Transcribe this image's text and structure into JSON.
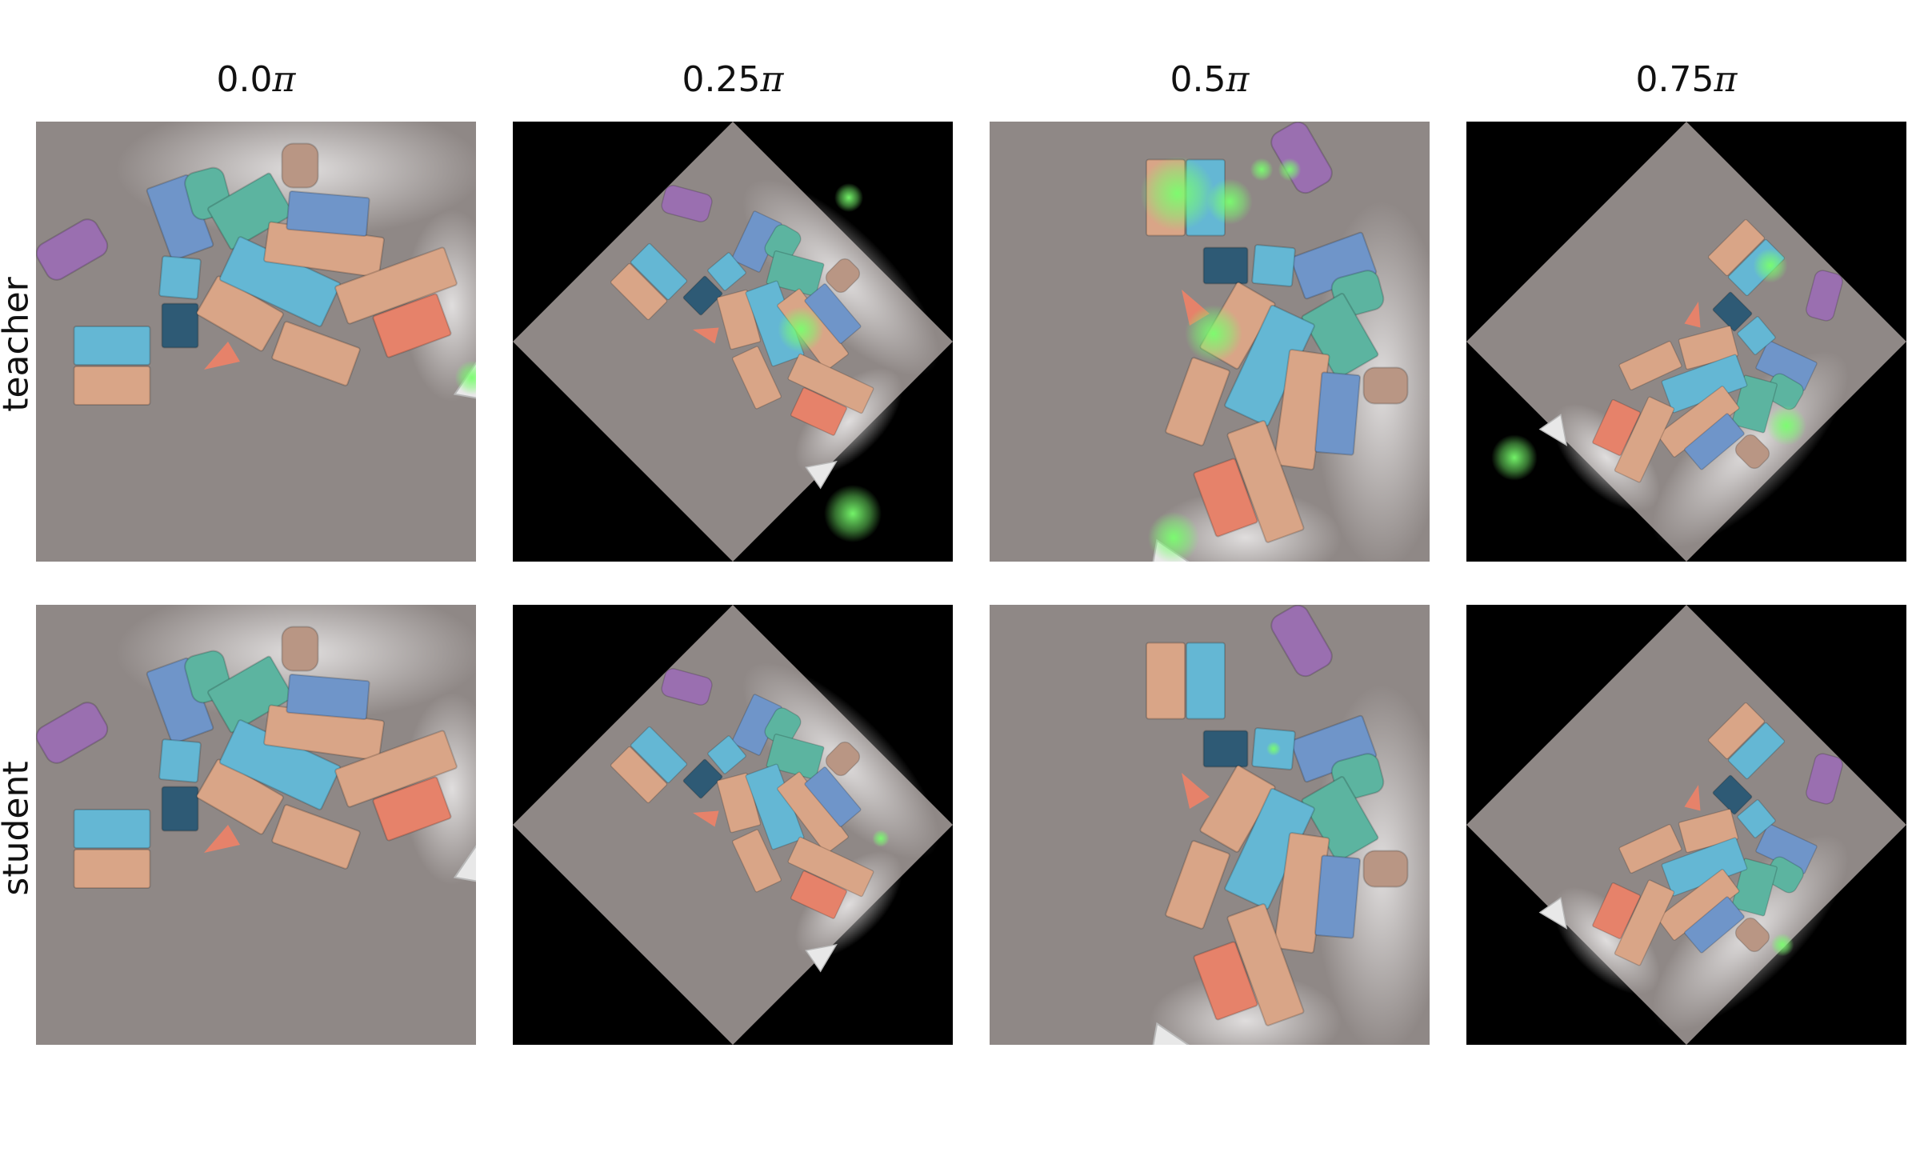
{
  "column_titles": [
    {
      "value": "0.0",
      "symbol": "π"
    },
    {
      "value": "0.25",
      "symbol": "π"
    },
    {
      "value": "0.5",
      "symbol": "π"
    },
    {
      "value": "0.75",
      "symbol": "π"
    }
  ],
  "row_labels": [
    "teacher",
    "student"
  ],
  "colors": {
    "floor": "#8f8886",
    "glare": "#e4e2e2",
    "background_mask": "#000000",
    "block_peach": "#d9a587",
    "block_blue": "#64b7d4",
    "block_steel": "#6f95c9",
    "block_teal": "#5cb4a0",
    "block_navy": "#2e5a75",
    "block_purple": "#9a6fb0",
    "block_salmon": "#e6826a",
    "block_tan": "#b99684",
    "highlight_green": "#79ff6e"
  }
}
